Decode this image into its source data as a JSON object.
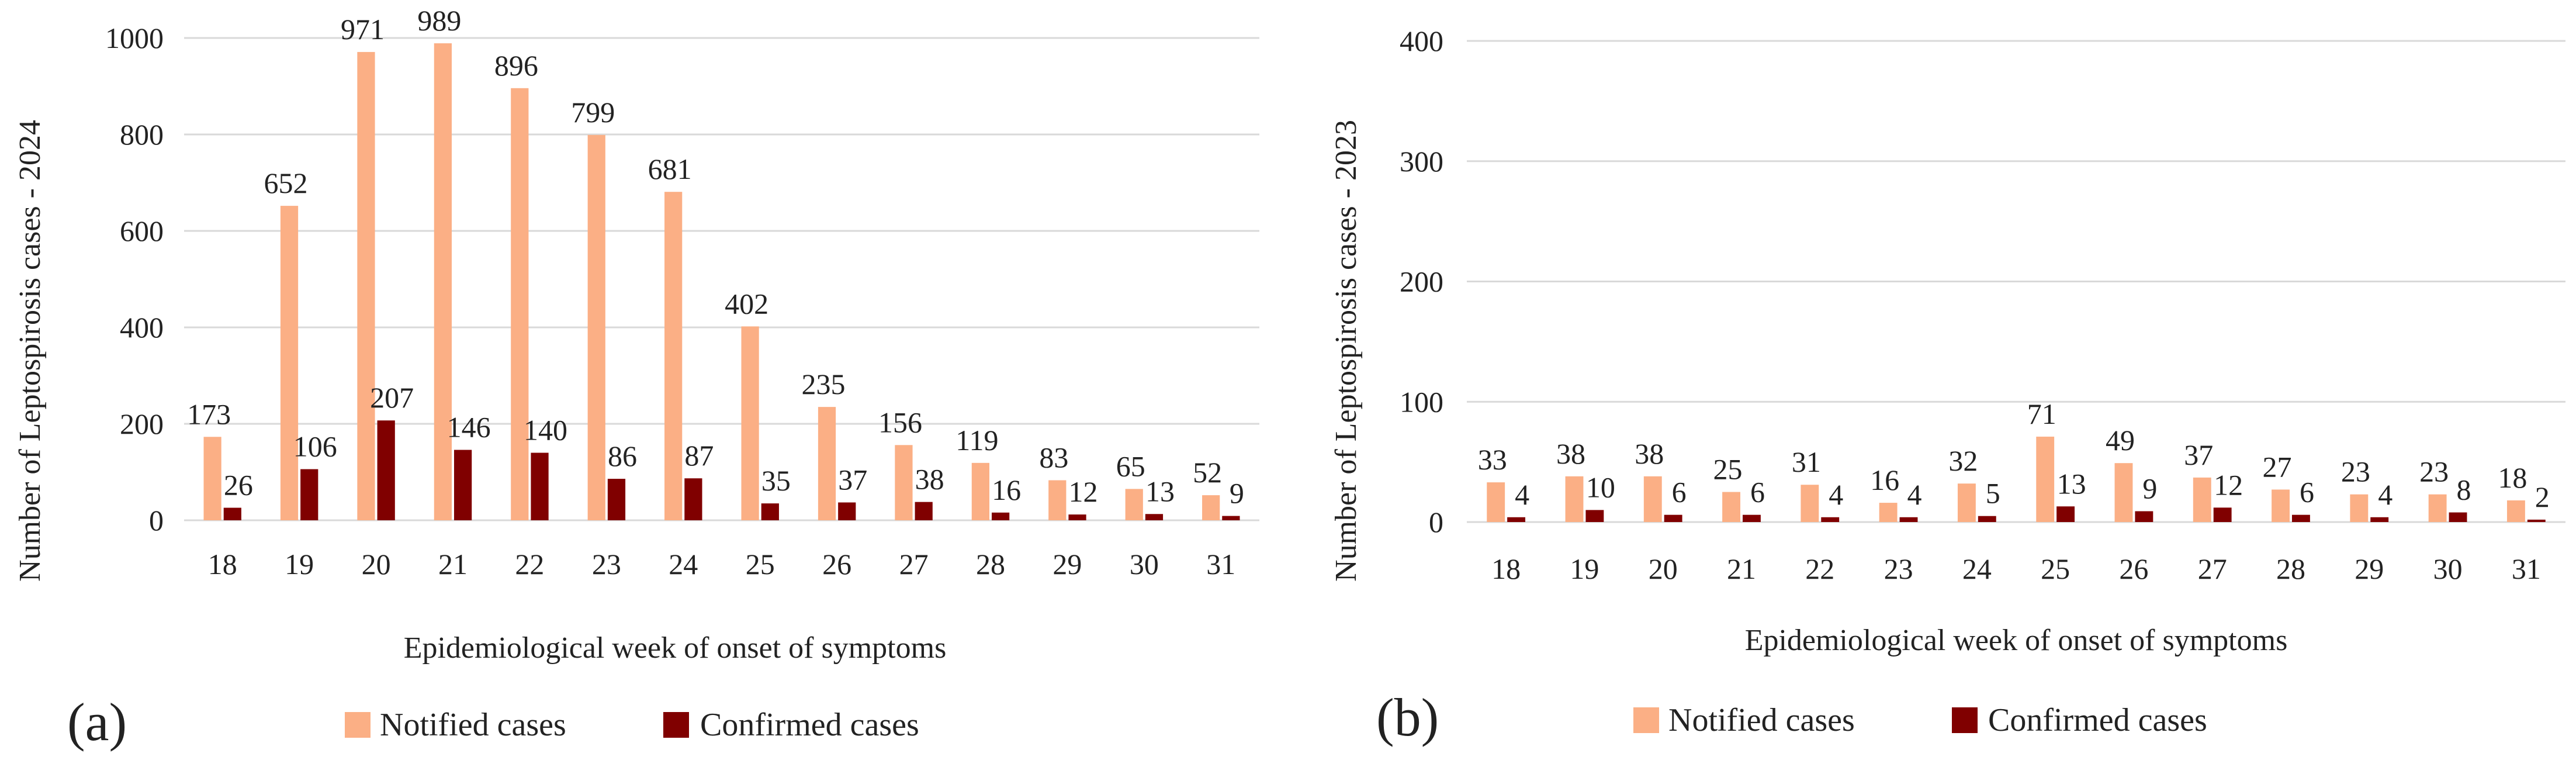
{
  "colors": {
    "notified": "#FBAF85",
    "confirmed": "#800000"
  },
  "chart_data": [
    {
      "type": "bar",
      "panel_label": "(a)",
      "categories": [
        "18",
        "19",
        "20",
        "21",
        "22",
        "23",
        "24",
        "25",
        "26",
        "27",
        "28",
        "29",
        "30",
        "31"
      ],
      "series": [
        {
          "name": "Notified cases",
          "values": [
            173,
            652,
            971,
            989,
            896,
            799,
            681,
            402,
            235,
            156,
            119,
            83,
            65,
            52
          ]
        },
        {
          "name": "Confirmed cases",
          "values": [
            26,
            106,
            207,
            146,
            140,
            86,
            87,
            35,
            37,
            38,
            16,
            12,
            13,
            9
          ]
        }
      ],
      "yticks": [
        "0",
        "200",
        "400",
        "600",
        "800",
        "1000"
      ],
      "ylim": [
        0,
        1000
      ],
      "xlabel": "Epidemiological week of onset of symptoms",
      "ylabel": "Number of Leptospirosis cases - 2024",
      "legend": [
        "Notified cases",
        "Confirmed cases"
      ],
      "legend_position": "bottom",
      "grid": true
    },
    {
      "type": "bar",
      "panel_label": "(b)",
      "categories": [
        "18",
        "19",
        "20",
        "21",
        "22",
        "23",
        "24",
        "25",
        "26",
        "27",
        "28",
        "29",
        "30",
        "31"
      ],
      "series": [
        {
          "name": "Notified cases",
          "values": [
            33,
            38,
            38,
            25,
            31,
            16,
            32,
            71,
            49,
            37,
            27,
            23,
            23,
            18
          ]
        },
        {
          "name": "Confirmed cases",
          "values": [
            4,
            10,
            6,
            6,
            4,
            4,
            5,
            13,
            9,
            12,
            6,
            4,
            8,
            2
          ]
        }
      ],
      "yticks": [
        "0",
        "100",
        "200",
        "300",
        "400"
      ],
      "ylim": [
        0,
        400
      ],
      "xlabel": "Epidemiological week of onset of symptoms",
      "ylabel": "Number of Leptospirosis cases - 2023",
      "legend": [
        "Notified cases",
        "Confirmed cases"
      ],
      "legend_position": "bottom",
      "grid": true
    }
  ]
}
